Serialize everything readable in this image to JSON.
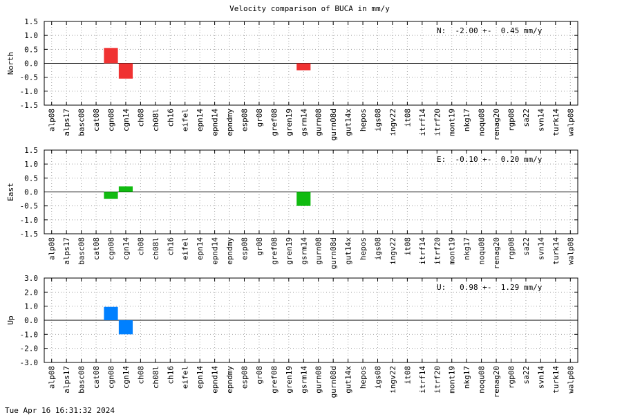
{
  "title": "Velocity comparison of BUCA in mm/y",
  "timestamp": "Tue Apr 16 16:31:32 2024",
  "chart_data": [
    {
      "type": "bar",
      "ylabel": "North",
      "color": "#f03232",
      "annotation": "N:  -2.00 +-  0.45 mm/y",
      "categories": [
        "alp08",
        "alps17",
        "basc08",
        "cat08",
        "cgn08",
        "cgn14",
        "ch08",
        "ch08l",
        "ch16",
        "eifel",
        "epn14",
        "epnd14",
        "epndmy",
        "esp08",
        "gr08",
        "gref08",
        "gren19",
        "gsrm14",
        "gurn08",
        "gurn08d",
        "gut14x",
        "hepos",
        "igs08",
        "ingv22",
        "it08",
        "itrf14",
        "itrf20",
        "mont19",
        "nkg17",
        "noqu08",
        "renag20",
        "rgp08",
        "sa22",
        "svn14",
        "turk14",
        "walp08"
      ],
      "values": [
        null,
        null,
        null,
        null,
        0.55,
        -0.55,
        null,
        null,
        null,
        null,
        null,
        null,
        null,
        null,
        null,
        null,
        null,
        -0.25,
        null,
        null,
        null,
        null,
        null,
        null,
        null,
        null,
        null,
        null,
        null,
        null,
        null,
        null,
        null,
        null,
        null,
        null
      ],
      "ylim": [
        -1.5,
        1.5
      ],
      "yticks": [
        -1.5,
        {
          "value": -1.0,
          "label": "-1.0"
        },
        -0.5,
        {
          "value": 0,
          "label": "0.0"
        },
        0.5,
        {
          "value": 1.0,
          "label": "1.0"
        },
        1.5
      ],
      "grid": true
    },
    {
      "type": "bar",
      "ylabel": "East",
      "color": "#11bb11",
      "annotation": "E:  -0.10 +-  0.20 mm/y",
      "categories": [
        "alp08",
        "alps17",
        "basc08",
        "cat08",
        "cgn08",
        "cgn14",
        "ch08",
        "ch08l",
        "ch16",
        "eifel",
        "epn14",
        "epnd14",
        "epndmy",
        "esp08",
        "gr08",
        "gref08",
        "gren19",
        "gsrm14",
        "gurn08",
        "gurn08d",
        "gut14x",
        "hepos",
        "igs08",
        "ingv22",
        "it08",
        "itrf14",
        "itrf20",
        "mont19",
        "nkg17",
        "noqu08",
        "renag20",
        "rgp08",
        "sa22",
        "svn14",
        "turk14",
        "walp08"
      ],
      "values": [
        null,
        null,
        null,
        null,
        -0.25,
        0.2,
        null,
        null,
        null,
        null,
        null,
        null,
        null,
        null,
        null,
        null,
        null,
        -0.5,
        null,
        null,
        null,
        null,
        null,
        null,
        null,
        null,
        null,
        null,
        null,
        null,
        null,
        null,
        null,
        null,
        null,
        null
      ],
      "ylim": [
        -1.5,
        1.5
      ],
      "yticks": [
        -1.5,
        {
          "value": -1.0,
          "label": "-1.0"
        },
        -0.5,
        {
          "value": 0,
          "label": "0.0"
        },
        0.5,
        {
          "value": 1.0,
          "label": "1.0"
        },
        1.5
      ],
      "grid": true
    },
    {
      "type": "bar",
      "ylabel": "Up",
      "color": "#0080ff",
      "annotation": "U:   0.98 +-  1.29 mm/y",
      "categories": [
        "alp08",
        "alps17",
        "basc08",
        "cat08",
        "cgn08",
        "cgn14",
        "ch08",
        "ch08l",
        "ch16",
        "eifel",
        "epn14",
        "epnd14",
        "epndmy",
        "esp08",
        "gr08",
        "gref08",
        "gren19",
        "gsrm14",
        "gurn08",
        "gurn08d",
        "gut14x",
        "hepos",
        "igs08",
        "ingv22",
        "it08",
        "itrf14",
        "itrf20",
        "mont19",
        "nkg17",
        "noqu08",
        "renag20",
        "rgp08",
        "sa22",
        "svn14",
        "turk14",
        "walp08"
      ],
      "values": [
        null,
        null,
        null,
        null,
        0.95,
        -1.0,
        null,
        null,
        null,
        null,
        null,
        null,
        null,
        null,
        null,
        null,
        null,
        null,
        null,
        null,
        null,
        null,
        null,
        null,
        null,
        null,
        null,
        null,
        null,
        null,
        null,
        null,
        null,
        null,
        null,
        null
      ],
      "ylim": [
        -3,
        3
      ],
      "yticks": [
        {
          "value": -3,
          "label": "-3.0"
        },
        {
          "value": -2,
          "label": "-2.0"
        },
        {
          "value": -1,
          "label": "-1.0"
        },
        {
          "value": 0,
          "label": "0.0"
        },
        {
          "value": 1,
          "label": "1.0"
        },
        {
          "value": 2,
          "label": "2.0"
        },
        {
          "value": 3,
          "label": "3.0"
        }
      ],
      "grid": true
    }
  ]
}
